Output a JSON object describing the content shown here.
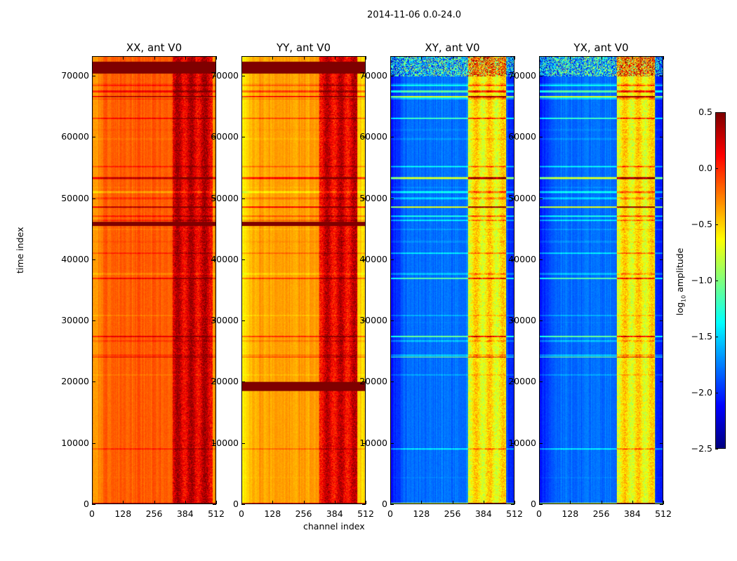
{
  "chart_data": {
    "type": "heatmap",
    "title": "2014-11-06 0.0-24.0",
    "xlabel": "channel index",
    "ylabel": "time index",
    "xlim": [
      0,
      512
    ],
    "ylim": [
      0,
      73200
    ],
    "xticks": [
      "0",
      "128",
      "256",
      "384",
      "512"
    ],
    "xtick_values": [
      0,
      128,
      256,
      384,
      512
    ],
    "yticks": [
      "0",
      "10000",
      "20000",
      "30000",
      "40000",
      "50000",
      "60000",
      "70000"
    ],
    "ytick_values": [
      0,
      10000,
      20000,
      30000,
      40000,
      50000,
      60000,
      70000
    ],
    "panels": [
      {
        "title": "XX, ant V0",
        "base": -0.15,
        "band_level": 0.25,
        "band_channels": [
          330,
          500
        ],
        "saturated_rows": [
          [
            70500,
            72500
          ],
          [
            45500,
            46200
          ]
        ]
      },
      {
        "title": "YY, ant V0",
        "base": -0.35,
        "band_level": 0.2,
        "band_channels": [
          320,
          480
        ],
        "saturated_rows": [
          [
            70500,
            72500
          ],
          [
            18500,
            20000
          ],
          [
            45500,
            46200
          ]
        ]
      },
      {
        "title": "XY, ant V0",
        "base": -1.8,
        "band_level": -0.6,
        "band_channels": [
          320,
          480
        ],
        "saturated_rows": []
      },
      {
        "title": "YX, ant V0",
        "base": -1.8,
        "band_level": -0.6,
        "band_channels": [
          320,
          480
        ],
        "saturated_rows": []
      }
    ],
    "colorbar": {
      "label": "log10 amplitude",
      "range": [
        -2.5,
        0.5
      ],
      "ticks": [
        "0.5",
        "0.0",
        "−0.5",
        "−1.0",
        "−1.5",
        "−2.0",
        "−2.5"
      ],
      "tick_values": [
        0.5,
        0,
        -0.5,
        -1,
        -1.5,
        -2,
        -2.5
      ],
      "colormap": "jet"
    }
  }
}
